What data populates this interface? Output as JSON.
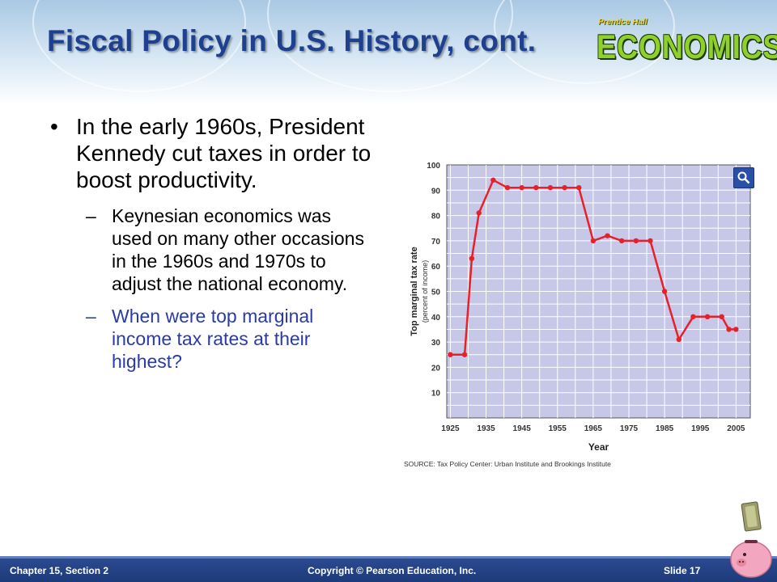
{
  "slide": {
    "title": "Fiscal Policy in U.S. History, cont.",
    "logo_small": "Prentice Hall",
    "logo_word": "ECONOMICS",
    "bullet_mark": "•",
    "dash_mark": "–",
    "bullet": "In the early 1960s, President Kennedy cut taxes in order to boost productivity.",
    "sub_points": [
      "Keynesian economics was used on many other occasions in the 1960s and 1970s to adjust the national economy.",
      "When were top marginal income tax rates at their highest?"
    ]
  },
  "footer": {
    "left": "Chapter 15, Section 2",
    "center": "Copyright © Pearson Education, Inc.",
    "right": "Slide 17"
  },
  "colors": {
    "title": "#1f3f8f",
    "question": "#2a3aa8",
    "footer": "#23428a",
    "line": "#e8202a",
    "plot_bg": "#c7c7e8",
    "grid": "#ffffff"
  },
  "icons": [
    "magnifier-icon",
    "piggy-bank-icon"
  ],
  "chart_data": {
    "type": "line",
    "x": [
      1925,
      1929,
      1931,
      1933,
      1937,
      1941,
      1945,
      1949,
      1953,
      1957,
      1961,
      1965,
      1969,
      1973,
      1977,
      1981,
      1985,
      1989,
      1993,
      1997,
      2001,
      2003,
      2005
    ],
    "y": [
      25,
      25,
      63,
      81,
      94,
      91,
      91,
      91,
      91,
      91,
      91,
      70,
      72,
      70,
      70,
      70,
      50,
      31,
      40,
      40,
      40,
      35,
      35
    ],
    "x_ticks": [
      1925,
      1935,
      1945,
      1955,
      1965,
      1975,
      1985,
      1995,
      2005
    ],
    "y_ticks": [
      10,
      20,
      30,
      40,
      50,
      60,
      70,
      80,
      90,
      100
    ],
    "xlim": [
      1924,
      2009
    ],
    "ylim": [
      0,
      100
    ],
    "xlabel": "Year",
    "ylabel": "Top marginal tax rate",
    "ylabel_sub": "(percent of income)",
    "source": "SOURCE: Tax Policy Center: Urban Institute and Brookings Institute",
    "grid": true
  }
}
